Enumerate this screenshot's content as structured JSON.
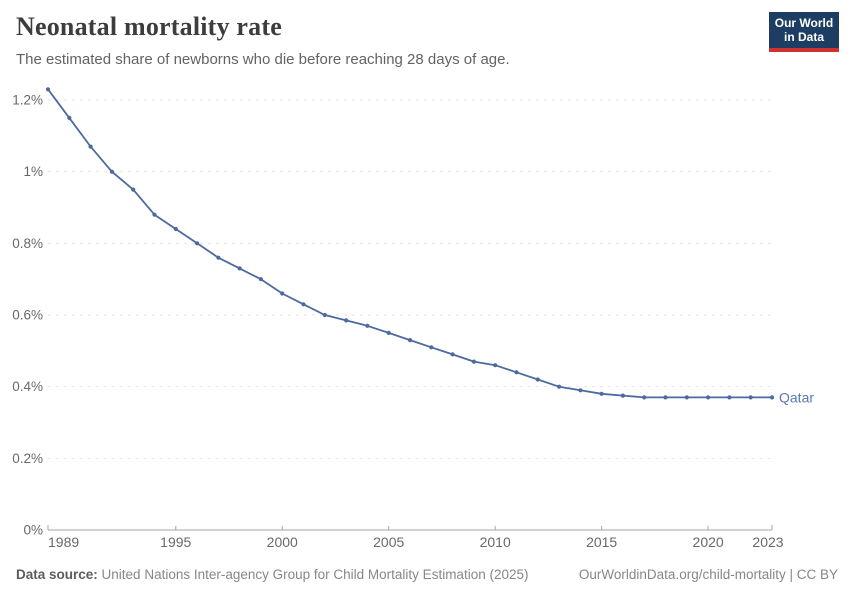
{
  "header": {
    "title": "Neonatal mortality rate",
    "subtitle": "The estimated share of newborns who die before reaching 28 days of age.",
    "logo": {
      "line1": "Our World",
      "line2": "in Data"
    }
  },
  "chart_data": {
    "type": "line",
    "title": "Neonatal mortality rate",
    "unit": "%",
    "x": [
      1989,
      1990,
      1991,
      1992,
      1993,
      1994,
      1995,
      1996,
      1997,
      1998,
      1999,
      2000,
      2001,
      2002,
      2003,
      2004,
      2005,
      2006,
      2007,
      2008,
      2009,
      2010,
      2011,
      2012,
      2013,
      2014,
      2015,
      2016,
      2017,
      2018,
      2019,
      2020,
      2021,
      2022,
      2023
    ],
    "series": [
      {
        "name": "Qatar",
        "values": [
          1.23,
          1.15,
          1.07,
          1.0,
          0.95,
          0.88,
          0.84,
          0.8,
          0.76,
          0.73,
          0.7,
          0.66,
          0.63,
          0.6,
          0.585,
          0.57,
          0.55,
          0.53,
          0.51,
          0.49,
          0.47,
          0.46,
          0.44,
          0.42,
          0.4,
          0.39,
          0.38,
          0.375,
          0.37,
          0.37,
          0.37,
          0.37,
          0.37,
          0.37,
          0.37
        ]
      }
    ],
    "xlim": [
      1989,
      2023
    ],
    "ylim": [
      0,
      1.2
    ],
    "x_ticks": [
      1989,
      1995,
      2000,
      2005,
      2010,
      2015,
      2020,
      2023
    ],
    "y_ticks": [
      {
        "value": 0,
        "label": "0%"
      },
      {
        "value": 0.2,
        "label": "0.2%"
      },
      {
        "value": 0.4,
        "label": "0.4%"
      },
      {
        "value": 0.6,
        "label": "0.6%"
      },
      {
        "value": 0.8,
        "label": "0.8%"
      },
      {
        "value": 1,
        "label": "1%"
      },
      {
        "value": 1.2,
        "label": "1.2%"
      }
    ],
    "grid": "dashed-horizontal",
    "legend_position": "end-of-line-label",
    "end_label": "Qatar"
  },
  "colors": {
    "line": "#4c6aa0",
    "end_label": "#587ab3",
    "grid": "#e2e2e2",
    "axis": "#a5a5a5",
    "tick_text": "#696969",
    "logo_bg": "#1d3d63",
    "logo_red": "#cf3231"
  },
  "footer": {
    "source_label": "Data source:",
    "source_text": "United Nations Inter-agency Group for Child Mortality Estimation (2025)",
    "credit": "OurWorldinData.org/child-mortality | CC BY"
  }
}
